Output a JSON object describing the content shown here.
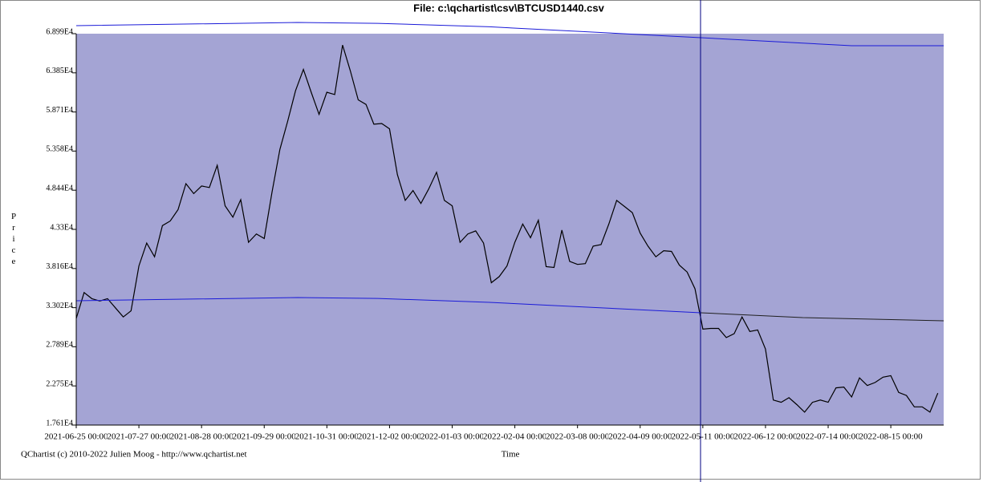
{
  "chart_data": {
    "type": "line",
    "title": "File: c:\\qchartist\\csv\\BTCUSD1440.csv",
    "xlabel": "Time",
    "ylabel": "Price",
    "footer": "QChartist (c) 2010-2022 Julien Moog - http://www.qchartist.net",
    "background": "#a4a4d4",
    "xlim": [
      "2021-06-25",
      "2022-09-11"
    ],
    "xticks": [
      {
        "value": "2021-06-25",
        "label": "2021-06-25 00:00"
      },
      {
        "value": "2021-07-27",
        "label": "2021-07-27 00:00"
      },
      {
        "value": "2021-08-28",
        "label": "2021-08-28 00:00"
      },
      {
        "value": "2021-09-29",
        "label": "2021-09-29 00:00"
      },
      {
        "value": "2021-10-31",
        "label": "2021-10-31 00:00"
      },
      {
        "value": "2021-12-02",
        "label": "2021-12-02 00:00"
      },
      {
        "value": "2022-01-03",
        "label": "2022-01-03 00:00"
      },
      {
        "value": "2022-02-04",
        "label": "2022-02-04 00:00"
      },
      {
        "value": "2022-03-08",
        "label": "2022-03-08 00:00"
      },
      {
        "value": "2022-04-09",
        "label": "2022-04-09 00:00"
      },
      {
        "value": "2022-05-11",
        "label": "2022-05-11 00:00"
      },
      {
        "value": "2022-06-12",
        "label": "2022-06-12 00:00"
      },
      {
        "value": "2022-07-14",
        "label": "2022-07-14 00:00"
      },
      {
        "value": "2022-08-15",
        "label": "2022-08-15 00:00"
      }
    ],
    "ylim": [
      17610,
      68990
    ],
    "yticks": [
      {
        "value": 17610,
        "label": "1.761E4"
      },
      {
        "value": 22750,
        "label": "2.275E4"
      },
      {
        "value": 27890,
        "label": "2.789E4"
      },
      {
        "value": 33020,
        "label": "3.302E4"
      },
      {
        "value": 38160,
        "label": "3.816E4"
      },
      {
        "value": 43300,
        "label": "4.33E4"
      },
      {
        "value": 48440,
        "label": "4.844E4"
      },
      {
        "value": 53580,
        "label": "5.358E4"
      },
      {
        "value": 58710,
        "label": "5.871E4"
      },
      {
        "value": 63850,
        "label": "6.385E4"
      },
      {
        "value": 68990,
        "label": "6.899E4"
      }
    ],
    "x": [
      "2021-06-25",
      "2021-06-29",
      "2021-07-03",
      "2021-07-07",
      "2021-07-11",
      "2021-07-15",
      "2021-07-19",
      "2021-07-23",
      "2021-07-27",
      "2021-07-31",
      "2021-08-04",
      "2021-08-08",
      "2021-08-12",
      "2021-08-16",
      "2021-08-20",
      "2021-08-24",
      "2021-08-28",
      "2021-09-01",
      "2021-09-05",
      "2021-09-09",
      "2021-09-13",
      "2021-09-17",
      "2021-09-21",
      "2021-09-25",
      "2021-09-29",
      "2021-10-03",
      "2021-10-07",
      "2021-10-11",
      "2021-10-15",
      "2021-10-19",
      "2021-10-23",
      "2021-10-27",
      "2021-10-31",
      "2021-11-04",
      "2021-11-08",
      "2021-11-12",
      "2021-11-16",
      "2021-11-20",
      "2021-11-24",
      "2021-11-28",
      "2021-12-02",
      "2021-12-06",
      "2021-12-10",
      "2021-12-14",
      "2021-12-18",
      "2021-12-22",
      "2021-12-26",
      "2021-12-30",
      "2022-01-03",
      "2022-01-07",
      "2022-01-11",
      "2022-01-15",
      "2022-01-19",
      "2022-01-23",
      "2022-01-27",
      "2022-01-31",
      "2022-02-04",
      "2022-02-08",
      "2022-02-12",
      "2022-02-16",
      "2022-02-20",
      "2022-02-24",
      "2022-02-28",
      "2022-03-04",
      "2022-03-08",
      "2022-03-12",
      "2022-03-16",
      "2022-03-20",
      "2022-03-24",
      "2022-03-28",
      "2022-04-01",
      "2022-04-05",
      "2022-04-09",
      "2022-04-13",
      "2022-04-17",
      "2022-04-21",
      "2022-04-25",
      "2022-04-29",
      "2022-05-03",
      "2022-05-07",
      "2022-05-11",
      "2022-05-15",
      "2022-05-19",
      "2022-05-23",
      "2022-05-27",
      "2022-05-31",
      "2022-06-04",
      "2022-06-08",
      "2022-06-12",
      "2022-06-16",
      "2022-06-20",
      "2022-06-24",
      "2022-06-28",
      "2022-07-02",
      "2022-07-06",
      "2022-07-10",
      "2022-07-14",
      "2022-07-18",
      "2022-07-22",
      "2022-07-26",
      "2022-07-30",
      "2022-08-03",
      "2022-08-07",
      "2022-08-11",
      "2022-08-15",
      "2022-08-19",
      "2022-08-23",
      "2022-08-27",
      "2022-08-31",
      "2022-09-04",
      "2022-09-08"
    ],
    "series": [
      {
        "color": "#000000",
        "values": [
          31600,
          35000,
          34200,
          33900,
          34200,
          33000,
          31800,
          32600,
          38500,
          41500,
          39700,
          43800,
          44400,
          45900,
          49300,
          48000,
          49000,
          48800,
          51700,
          46400,
          44900,
          47200,
          41600,
          42700,
          42100,
          48200,
          53800,
          57500,
          61500,
          64300,
          61300,
          58400,
          61300,
          61000,
          67500,
          64100,
          60300,
          59700,
          57100,
          57200,
          56500,
          50500,
          47100,
          48400,
          46700,
          48600,
          50800,
          47100,
          46400,
          41600,
          42700,
          43100,
          41500,
          36300,
          37100,
          38500,
          41600,
          44000,
          42200,
          44500,
          38400,
          38300,
          43200,
          39100,
          38700,
          38800,
          41100,
          41300,
          44000,
          47100,
          46300,
          45500,
          42800,
          41100,
          39700,
          40500,
          40400,
          38600,
          37700,
          35500,
          30200,
          30300,
          30300,
          29100,
          29600,
          31800,
          29900,
          30100,
          27600,
          20900,
          20600,
          21200,
          20300,
          19300,
          20600,
          20900,
          20600,
          22500,
          22600,
          21300,
          23800,
          22800,
          23200,
          23900,
          24100,
          21900,
          21500,
          20000,
          20000,
          19300,
          21800
        ]
      },
      {
        "color": "#1a1ad8",
        "x": [
          "2021-06-25",
          "2021-10-16",
          "2021-11-26",
          "2022-01-22",
          "2022-05-10",
          "2022-07-26",
          "2022-09-11"
        ],
        "values": [
          70040,
          70460,
          70350,
          69900,
          68460,
          67410,
          67410
        ]
      },
      {
        "color": "#1a1ad8",
        "x": [
          "2021-06-25",
          "2021-10-16",
          "2021-11-26",
          "2022-01-22",
          "2022-05-10"
        ],
        "values": [
          33930,
          34350,
          34240,
          33720,
          32350
        ]
      },
      {
        "color": "#202020",
        "x": [
          "2022-05-10",
          "2022-07-01",
          "2022-09-11"
        ],
        "values": [
          32350,
          31720,
          31300
        ]
      }
    ]
  }
}
